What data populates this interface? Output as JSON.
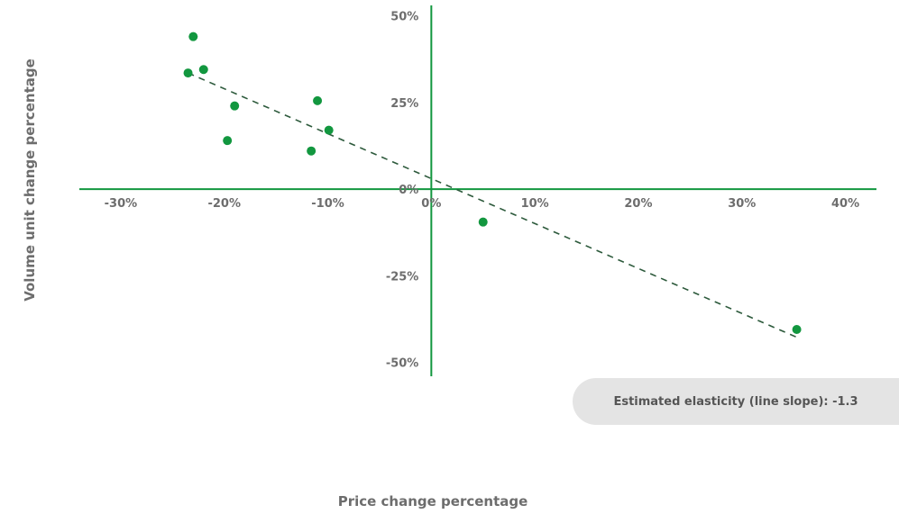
{
  "chart_data": {
    "type": "scatter",
    "xlabel": "Price change percentage",
    "ylabel": "Volume unit change percentage",
    "xlim": [
      -34,
      43
    ],
    "ylim": [
      -54,
      53
    ],
    "x_ticks": [
      {
        "value": -30,
        "label": "-30%"
      },
      {
        "value": -20,
        "label": "-20%"
      },
      {
        "value": -10,
        "label": "-10%"
      },
      {
        "value": 0,
        "label": "0%"
      },
      {
        "value": 10,
        "label": "10%"
      },
      {
        "value": 20,
        "label": "20%"
      },
      {
        "value": 30,
        "label": "30%"
      },
      {
        "value": 40,
        "label": "40%"
      }
    ],
    "y_ticks": [
      {
        "value": 50,
        "label": "50%"
      },
      {
        "value": 25,
        "label": "25%"
      },
      {
        "value": 0,
        "label": "0%"
      },
      {
        "value": -25,
        "label": "-25%"
      },
      {
        "value": -50,
        "label": "-50%"
      }
    ],
    "points": [
      {
        "x": -23.0,
        "y": 44.0
      },
      {
        "x": -23.5,
        "y": 33.5
      },
      {
        "x": -22.0,
        "y": 34.5
      },
      {
        "x": -19.0,
        "y": 24.0
      },
      {
        "x": -19.7,
        "y": 14.0
      },
      {
        "x": -11.0,
        "y": 25.5
      },
      {
        "x": -9.9,
        "y": 17.0
      },
      {
        "x": -11.6,
        "y": 11.0
      },
      {
        "x": 5.0,
        "y": -9.5
      },
      {
        "x": 35.3,
        "y": -40.5
      }
    ],
    "trendline": {
      "x": [
        -23.5,
        35.5
      ],
      "y": [
        33.5,
        -43.0
      ],
      "style": "dashed"
    },
    "annotation": "Estimated elasticity (line slope): -1.3",
    "grid": false,
    "colors": {
      "points": "#12973f",
      "axes": "#12973f",
      "trendline": "#2d5a3c",
      "text": "#6d6d6d",
      "note_bg": "#e4e4e4"
    }
  }
}
